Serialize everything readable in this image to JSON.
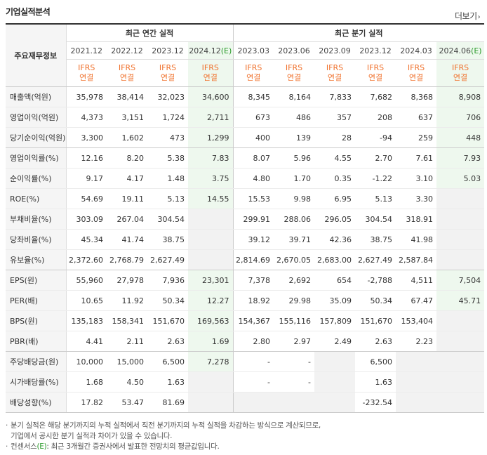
{
  "title": "기업실적분석",
  "more_label": "더보기",
  "header": {
    "row_label": "주요재무정보",
    "group_annual": "최근 연간 실적",
    "group_quarter": "최근 분기 실적",
    "periods": [
      {
        "label": "2021.12",
        "est": false
      },
      {
        "label": "2022.12",
        "est": false
      },
      {
        "label": "2023.12",
        "est": false
      },
      {
        "label": "2024.12",
        "est": true
      },
      {
        "label": "2023.03",
        "est": false
      },
      {
        "label": "2023.06",
        "est": false
      },
      {
        "label": "2023.09",
        "est": false
      },
      {
        "label": "2023.12",
        "est": false
      },
      {
        "label": "2024.03",
        "est": false
      },
      {
        "label": "2024.06",
        "est": true
      }
    ],
    "est_mark": "(E)",
    "ifrs": "IFRS",
    "consolidated": "연결"
  },
  "rows": [
    {
      "label": "매출액(억원)",
      "values": [
        "35,978",
        "38,414",
        "32,023",
        "34,600",
        "8,345",
        "8,164",
        "7,833",
        "7,682",
        "8,368",
        "8,908"
      ]
    },
    {
      "label": "영업이익(억원)",
      "values": [
        "4,373",
        "3,151",
        "1,724",
        "2,711",
        "673",
        "486",
        "357",
        "208",
        "637",
        "706"
      ]
    },
    {
      "label": "당기순이익(억원)",
      "values": [
        "3,300",
        "1,602",
        "473",
        "1,299",
        "400",
        "139",
        "28",
        "-94",
        "259",
        "448"
      ]
    },
    {
      "label": "영업이익률(%)",
      "values": [
        "12.16",
        "8.20",
        "5.38",
        "7.83",
        "8.07",
        "5.96",
        "4.55",
        "2.70",
        "7.61",
        "7.93"
      ]
    },
    {
      "label": "순이익률(%)",
      "values": [
        "9.17",
        "4.17",
        "1.48",
        "3.75",
        "4.80",
        "1.70",
        "0.35",
        "-1.22",
        "3.10",
        "5.03"
      ]
    },
    {
      "label": "ROE(%)",
      "values": [
        "54.69",
        "19.11",
        "5.13",
        "14.55",
        "15.53",
        "9.98",
        "6.95",
        "5.13",
        "3.30",
        ""
      ]
    },
    {
      "label": "부채비율(%)",
      "values": [
        "303.09",
        "267.04",
        "304.54",
        "",
        "299.91",
        "288.06",
        "296.05",
        "304.54",
        "318.91",
        ""
      ]
    },
    {
      "label": "당좌비율(%)",
      "values": [
        "45.34",
        "41.74",
        "38.75",
        "",
        "39.12",
        "39.71",
        "42.36",
        "38.75",
        "41.98",
        ""
      ]
    },
    {
      "label": "유보율(%)",
      "values": [
        "2,372.60",
        "2,768.79",
        "2,627.49",
        "",
        "2,814.69",
        "2,670.05",
        "2,683.00",
        "2,627.49",
        "2,587.84",
        ""
      ]
    },
    {
      "label": "EPS(원)",
      "values": [
        "55,960",
        "27,978",
        "7,936",
        "23,301",
        "7,378",
        "2,692",
        "654",
        "-2,788",
        "4,511",
        "7,504"
      ]
    },
    {
      "label": "PER(배)",
      "values": [
        "10.65",
        "11.92",
        "50.34",
        "12.27",
        "18.92",
        "29.98",
        "35.09",
        "50.34",
        "67.47",
        "45.71"
      ]
    },
    {
      "label": "BPS(원)",
      "values": [
        "135,183",
        "158,341",
        "151,670",
        "169,563",
        "154,367",
        "155,116",
        "157,809",
        "151,670",
        "153,404",
        ""
      ]
    },
    {
      "label": "PBR(배)",
      "values": [
        "4.41",
        "2.11",
        "2.63",
        "1.69",
        "2.80",
        "2.97",
        "2.49",
        "2.63",
        "2.23",
        ""
      ]
    },
    {
      "label": "주당배당금(원)",
      "values": [
        "10,000",
        "15,000",
        "6,500",
        "7,278",
        "-",
        "-",
        "",
        "6,500",
        "",
        ""
      ]
    },
    {
      "label": "시가배당률(%)",
      "values": [
        "1.68",
        "4.50",
        "1.63",
        "",
        "-",
        "-",
        "",
        "1.63",
        "",
        ""
      ]
    },
    {
      "label": "배당성향(%)",
      "values": [
        "17.82",
        "53.47",
        "81.69",
        "",
        "",
        "",
        "",
        "-232.54",
        "",
        ""
      ]
    }
  ],
  "notes": {
    "line1": "분기 실적은 해당 분기까지의 누적 실적에서 직전 분기까지의 누적 실적을 차감하는 방식으로 계산되므로,",
    "line2": "기업에서 공시한 분기 실적과 차이가 있을 수 있습니다.",
    "line3_a": "컨센서스",
    "line3_e": "(E)",
    "line3_b": ": 최근 3개월간 증권사에서 발표한 전망치의 평균값입니다."
  }
}
